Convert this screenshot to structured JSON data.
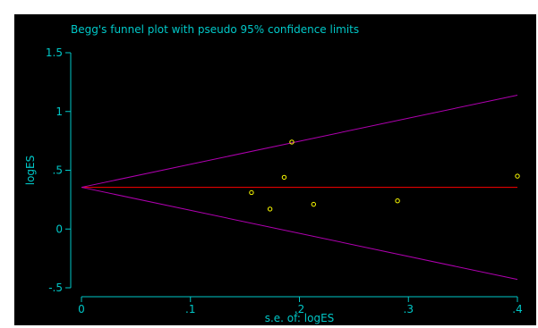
{
  "chart_data": {
    "type": "scatter",
    "title": "Begg's funnel plot with pseudo 95% confidence limits",
    "xlabel": "s.e. of: logES",
    "ylabel": "logES",
    "xlim": [
      0,
      0.4
    ],
    "ylim": [
      -0.5,
      1.5
    ],
    "x_ticks": [
      {
        "value": 0,
        "label": "0"
      },
      {
        "value": 0.1,
        "label": ".1"
      },
      {
        "value": 0.2,
        "label": ".2"
      },
      {
        "value": 0.3,
        "label": ".3"
      },
      {
        "value": 0.4,
        "label": ".4"
      }
    ],
    "y_ticks": [
      {
        "value": -0.5,
        "label": "-.5"
      },
      {
        "value": 0,
        "label": "0"
      },
      {
        "value": 0.5,
        "label": ".5"
      },
      {
        "value": 1,
        "label": "1"
      },
      {
        "value": 1.5,
        "label": "1.5"
      }
    ],
    "points": [
      {
        "x": 0.156,
        "y": 0.31
      },
      {
        "x": 0.173,
        "y": 0.17
      },
      {
        "x": 0.186,
        "y": 0.44
      },
      {
        "x": 0.193,
        "y": 0.74
      },
      {
        "x": 0.213,
        "y": 0.21
      },
      {
        "x": 0.29,
        "y": 0.24
      },
      {
        "x": 0.4,
        "y": 0.45
      }
    ],
    "pooled_estimate": 0.355,
    "ci_upper": {
      "x": [
        0,
        0.4
      ],
      "y": [
        0.355,
        1.139
      ]
    },
    "ci_lower": {
      "x": [
        0,
        0.4
      ],
      "y": [
        0.355,
        -0.429
      ]
    },
    "grid": false,
    "colors": {
      "background": "#000000",
      "axis": "#00c8c8",
      "text": "#00c8c8",
      "points": "#ffff00",
      "pooled_line": "#ff0000",
      "ci_lines": "#b000b0"
    }
  }
}
